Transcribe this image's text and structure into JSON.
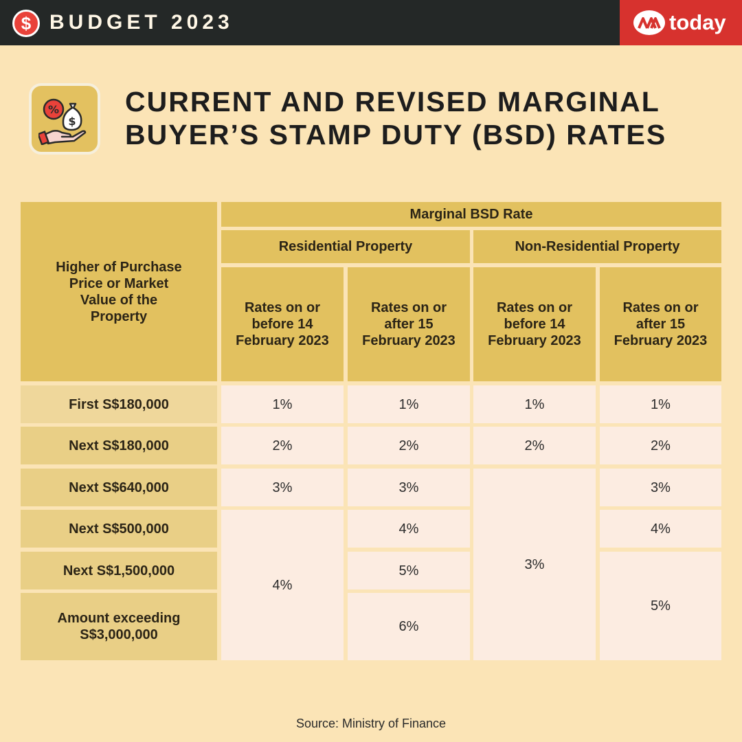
{
  "header": {
    "logo_symbol": "$",
    "budget_title": "BUDGET 2023",
    "brand": "today",
    "brand_color": "#d7322e",
    "bar_color": "#242827"
  },
  "title": {
    "line1": "CURRENT AND REVISED MARGINAL",
    "line2": "BUYER’S STAMP DUTY (BSD) RATES",
    "icon": "money-bag-percent-hand-icon"
  },
  "table": {
    "row_header_title": "Higher of Purchase Price or Market Value of the Property",
    "group_title": "Marginal BSD Rate",
    "residential": "Residential Property",
    "non_residential": "Non-Residential Property",
    "col_before": "Rates on or before 14 February 2023",
    "col_after": "Rates on or after 15 February 2023",
    "rows": [
      {
        "label": "First S$180,000"
      },
      {
        "label": "Next S$180,000"
      },
      {
        "label": "Next S$640,000"
      },
      {
        "label": "Next S$500,000"
      },
      {
        "label": "Next S$1,500,000"
      },
      {
        "label": "Amount exceeding S$3,000,000"
      }
    ],
    "res_before": [
      "1%",
      "2%",
      "3%",
      "4%"
    ],
    "res_after": [
      "1%",
      "2%",
      "3%",
      "4%",
      "5%",
      "6%"
    ],
    "nonres_before": [
      "1%",
      "2%",
      "3%"
    ],
    "nonres_after": [
      "1%",
      "2%",
      "3%",
      "4%",
      "5%"
    ]
  },
  "source": "Source: Ministry of Finance"
}
